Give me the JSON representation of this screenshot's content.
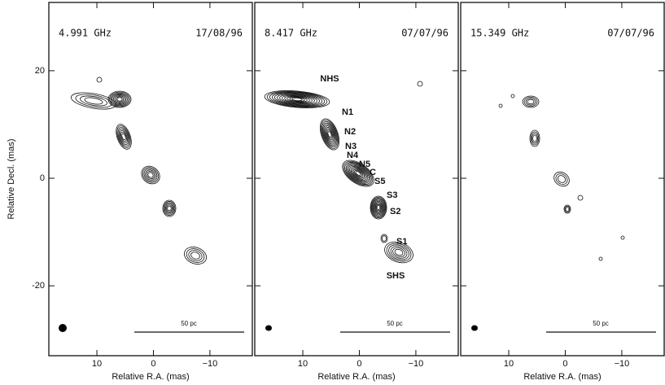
{
  "chart_data": {
    "type": "contour",
    "ylabel": "Relative Decl. (mas)",
    "xlim": [
      18.5,
      -17.5
    ],
    "ylim": [
      -33,
      32.7
    ],
    "xticks": [
      10,
      0,
      {
        "value": -10,
        "label": "−10"
      }
    ],
    "yticks": [
      -20,
      0,
      20
    ],
    "panels": [
      {
        "xlabel": "Relative R.A. (mas)",
        "frequency": "4.991 GHz",
        "date": "17/08/96",
        "scale_bar": "50 pc"
      },
      {
        "xlabel": "Relative R.A. (mas)",
        "frequency": "8.417 GHz",
        "date": "07/07/96",
        "scale_bar": "50 pc"
      },
      {
        "xlabel": "Relative R.A. (mas)",
        "frequency": "15.349 GHz",
        "date": "07/07/96",
        "scale_bar": "50 pc"
      }
    ],
    "annotations": [
      "NHS",
      "N1",
      "N2",
      "N3",
      "N4",
      "N5",
      "C",
      "S5",
      "S3",
      "S2",
      "S1",
      "SHS"
    ]
  }
}
